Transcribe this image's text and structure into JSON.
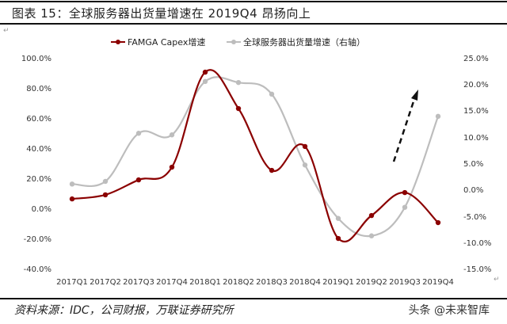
{
  "header": {
    "title": "图表 15：全球服务器出货量增速在 2019Q4 昂扬向上"
  },
  "footer": {
    "source": "资料来源：IDC，公司财报，万联证券研究所",
    "watermark": "头条 @未来智库"
  },
  "colors": {
    "series1": "#8b0000",
    "series2": "#bdbdbd",
    "arrow": "#111111",
    "text": "#222222"
  },
  "legend": {
    "items": [
      {
        "label": "FAMGA Capex增速",
        "color": "#8b0000"
      },
      {
        "label": "全球服务器出货量增速（右轴）",
        "color": "#bdbdbd"
      }
    ]
  },
  "axes": {
    "left_ticks": [
      "100.0%",
      "80.0%",
      "60.0%",
      "40.0%",
      "20.0%",
      "0.0%",
      "-20.0%",
      "-40.0%"
    ],
    "right_ticks": [
      "25.0%",
      "20.0%",
      "15.0%",
      "10.0%",
      "5.0%",
      "0.0%",
      "-5.0%",
      "-10.0%",
      "-15.0%"
    ],
    "x_ticks": [
      "2017Q1",
      "2017Q2",
      "2017Q3",
      "2017Q4",
      "2018Q1",
      "2018Q2",
      "2018Q3",
      "2018Q4",
      "2019Q1",
      "2019Q2",
      "2019Q3",
      "2019Q4"
    ]
  },
  "chart_data": {
    "type": "line",
    "title": "全球服务器出货量增速在 2019Q4 昂扬向上",
    "xlabel": "",
    "ylabel": "",
    "x": [
      "2017Q1",
      "2017Q2",
      "2017Q3",
      "2017Q4",
      "2018Q1",
      "2018Q2",
      "2018Q3",
      "2018Q4",
      "2019Q1",
      "2019Q2",
      "2019Q3",
      "2019Q4"
    ],
    "series": [
      {
        "name": "FAMGA Capex增速",
        "axis": "left",
        "values": [
          7.3,
          10.0,
          19.9,
          28.3,
          91.2,
          67.1,
          26.2,
          42.0,
          -18.9,
          -3.7,
          11.5,
          -8.4
        ]
      },
      {
        "name": "全球服务器出货量增速（右轴）",
        "axis": "right",
        "values": [
          1.3,
          1.8,
          10.9,
          10.6,
          20.7,
          20.5,
          18.3,
          4.9,
          -5.2,
          -8.5,
          -3.1,
          14.1
        ]
      }
    ],
    "ylim_left": [
      -40,
      100
    ],
    "ylim_right": [
      -15,
      25
    ],
    "unit": "%",
    "grid": false,
    "legend_position": "top",
    "annotations": [
      "dashed upward arrow near 2019Q3-2019Q4"
    ]
  }
}
